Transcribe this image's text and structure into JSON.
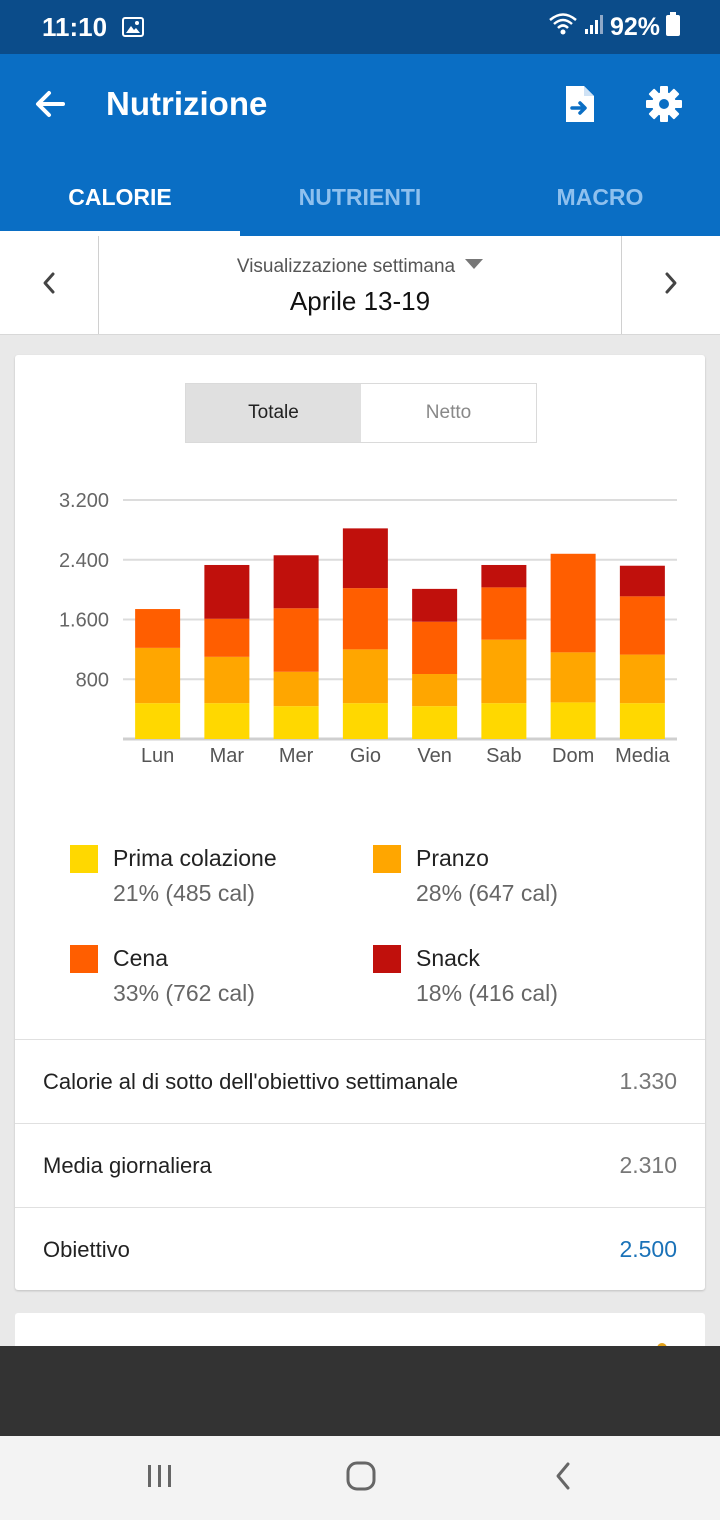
{
  "status": {
    "time": "11:10",
    "battery": "92%"
  },
  "appbar": {
    "title": "Nutrizione",
    "icons": [
      "back-arrow-icon",
      "export-file-icon",
      "gear-icon"
    ]
  },
  "tabs": [
    {
      "label": "CALORIE",
      "active": true
    },
    {
      "label": "NUTRIENTI",
      "active": false
    },
    {
      "label": "MACRO",
      "active": false
    }
  ],
  "week": {
    "mode": "Visualizzazione settimana",
    "range": "Aprile 13-19"
  },
  "toggle": {
    "total": "Totale",
    "net": "Netto",
    "selected": "Totale"
  },
  "chart_data": {
    "type": "bar",
    "stacked": true,
    "categories": [
      "Lun",
      "Mar",
      "Mer",
      "Gio",
      "Ven",
      "Sab",
      "Dom",
      "Media"
    ],
    "yticks": [
      "3.200",
      "2.400",
      "1.600",
      "800"
    ],
    "ytick_values": [
      3200,
      2400,
      1600,
      800
    ],
    "ylim": [
      0,
      3200
    ],
    "grid": true,
    "series": [
      {
        "name": "Prima colazione",
        "color": "#ffd800",
        "values": [
          480,
          480,
          440,
          480,
          440,
          480,
          490,
          480
        ]
      },
      {
        "name": "Pranzo",
        "color": "#ffa600",
        "values": [
          740,
          620,
          460,
          720,
          430,
          850,
          670,
          650
        ]
      },
      {
        "name": "Cena",
        "color": "#ff5e00",
        "values": [
          520,
          510,
          850,
          820,
          700,
          700,
          1320,
          780
        ]
      },
      {
        "name": "Snack",
        "color": "#c0100c",
        "values": [
          0,
          720,
          710,
          800,
          440,
          300,
          0,
          410
        ]
      }
    ]
  },
  "legend": [
    {
      "name": "Prima colazione",
      "pct": "21% (485 cal)",
      "color": "#ffd800"
    },
    {
      "name": "Pranzo",
      "pct": "28% (647 cal)",
      "color": "#ffa600"
    },
    {
      "name": "Cena",
      "pct": "33% (762 cal)",
      "color": "#ff5e00"
    },
    {
      "name": "Snack",
      "pct": "18% (416 cal)",
      "color": "#c0100c"
    }
  ],
  "stats": [
    {
      "label": "Calorie al di sotto dell'obiettivo settimanale",
      "value": "1.330"
    },
    {
      "label": "Media giornaliera",
      "value": "2.310"
    },
    {
      "label": "Obiettivo",
      "value": "2.500"
    }
  ]
}
